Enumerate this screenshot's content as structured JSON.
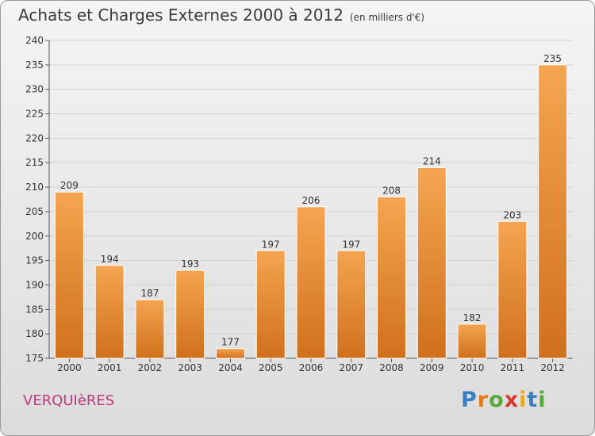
{
  "header": {
    "title": "Achats et Charges Externes 2000 à 2012",
    "unit": "(en milliers d'€)"
  },
  "footer": {
    "commune": "VERQUIèRES",
    "logo_letters": [
      {
        "char": "P",
        "color": "#3a7fc4"
      },
      {
        "char": "r",
        "color": "#e27b23"
      },
      {
        "char": "o",
        "color": "#58a83a"
      },
      {
        "char": "x",
        "color": "#d8372d"
      },
      {
        "char": "i",
        "color": "#e6a91f"
      },
      {
        "char": "t",
        "color": "#3a7fc4"
      },
      {
        "char": "i",
        "color": "#58a83a"
      }
    ]
  },
  "chart_data": {
    "type": "bar",
    "categories": [
      "2000",
      "2001",
      "2002",
      "2003",
      "2004",
      "2005",
      "2006",
      "2007",
      "2008",
      "2009",
      "2010",
      "2011",
      "2012"
    ],
    "values": [
      209,
      194,
      187,
      193,
      177,
      197,
      206,
      197,
      208,
      214,
      182,
      203,
      235
    ],
    "ylim": [
      175,
      240
    ],
    "yticks": [
      175,
      180,
      185,
      190,
      195,
      200,
      205,
      210,
      215,
      220,
      225,
      230,
      235,
      240
    ],
    "grid": true,
    "bar_color_light": "#f5a550",
    "bar_color_dark": "#d0701c"
  }
}
